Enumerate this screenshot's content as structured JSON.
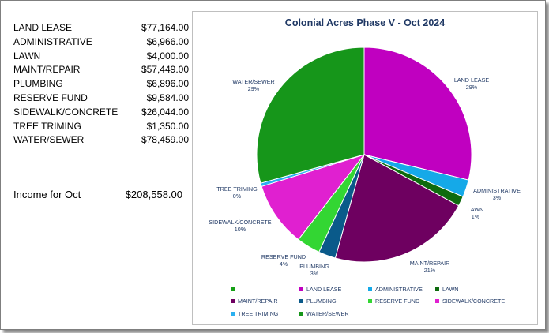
{
  "budget": {
    "rows": [
      {
        "label": "LAND LEASE",
        "amount": "$77,164.00"
      },
      {
        "label": "ADMINISTRATIVE",
        "amount": "$6,966.00"
      },
      {
        "label": "LAWN",
        "amount": "$4,000.00"
      },
      {
        "label": "MAINT/REPAIR",
        "amount": "$57,449.00"
      },
      {
        "label": "PLUMBING",
        "amount": "$6,896.00"
      },
      {
        "label": "RESERVE FUND",
        "amount": "$9,584.00"
      },
      {
        "label": "SIDEWALK/CONCRETE",
        "amount": "$26,044.00"
      },
      {
        "label": "TREE TRIMING",
        "amount": "$1,350.00"
      },
      {
        "label": "WATER/SEWER",
        "amount": "$78,459.00"
      }
    ],
    "income_label": "Income for Oct",
    "income_value": "$208,558.00"
  },
  "chart_data": {
    "type": "pie",
    "title": "Colonial Acres Phase V - Oct 2024",
    "slices": [
      {
        "name": "LAND LEASE",
        "value": 77164,
        "pct_label": "29%",
        "color": "#c000c0"
      },
      {
        "name": "ADMINISTRATIVE",
        "value": 6966,
        "pct_label": "3%",
        "color": "#15a9e8"
      },
      {
        "name": "LAWN",
        "value": 4000,
        "pct_label": "1%",
        "color": "#0e6b0e"
      },
      {
        "name": "MAINT/REPAIR",
        "value": 57449,
        "pct_label": "21%",
        "color": "#6e0060"
      },
      {
        "name": "PLUMBING",
        "value": 6896,
        "pct_label": "3%",
        "color": "#0a5a8a"
      },
      {
        "name": "RESERVE FUND",
        "value": 9584,
        "pct_label": "4%",
        "color": "#33d633"
      },
      {
        "name": "SIDEWALK/CONCRETE",
        "value": 26044,
        "pct_label": "10%",
        "color": "#e020d0"
      },
      {
        "name": "TREE TRIMING",
        "value": 1350,
        "pct_label": "0%",
        "color": "#2ab0f0"
      },
      {
        "name": "WATER/SEWER",
        "value": 78459,
        "pct_label": "29%",
        "color": "#16961a"
      }
    ],
    "legend": [
      {
        "name": "",
        "color": "#16a016"
      },
      {
        "name": "LAND LEASE",
        "color": "#c000c0"
      },
      {
        "name": "ADMINISTRATIVE",
        "color": "#15a9e8"
      },
      {
        "name": "LAWN",
        "color": "#0e6b0e"
      },
      {
        "name": "MAINT/REPAIR",
        "color": "#6e0060"
      },
      {
        "name": "PLUMBING",
        "color": "#0a5a8a"
      },
      {
        "name": "RESERVE FUND",
        "color": "#33d633"
      },
      {
        "name": "SIDEWALK/CONCRETE",
        "color": "#e020d0"
      },
      {
        "name": "TREE TRIMING",
        "color": "#2ab0f0"
      },
      {
        "name": "WATER/SEWER",
        "color": "#16961a"
      }
    ],
    "legend_position": "bottom"
  }
}
